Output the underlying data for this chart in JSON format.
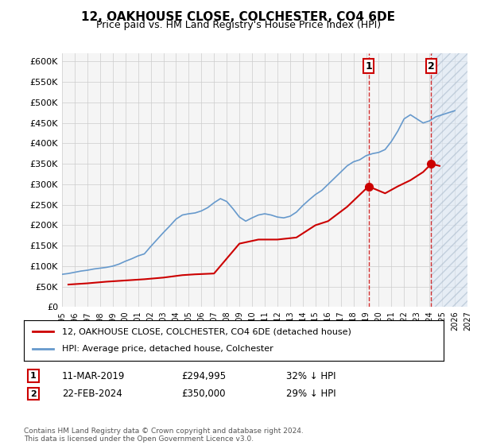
{
  "title": "12, OAKHOUSE CLOSE, COLCHESTER, CO4 6DE",
  "subtitle": "Price paid vs. HM Land Registry's House Price Index (HPI)",
  "hpi_color": "#6699cc",
  "price_color": "#cc0000",
  "marker_color": "#cc0000",
  "vline_color": "#cc0000",
  "annotation_box_color": "#cc0000",
  "background_color": "#ffffff",
  "grid_color": "#cccccc",
  "plot_bg_color": "#f5f5f5",
  "right_hatch_color": "#d0d8e8",
  "ylim": [
    0,
    620000
  ],
  "ytick_step": 50000,
  "legend_label_red": "12, OAKHOUSE CLOSE, COLCHESTER, CO4 6DE (detached house)",
  "legend_label_blue": "HPI: Average price, detached house, Colchester",
  "annotation1_label": "1",
  "annotation1_date": "11-MAR-2019",
  "annotation1_price": "£294,995",
  "annotation1_pct": "32% ↓ HPI",
  "annotation2_label": "2",
  "annotation2_date": "22-FEB-2024",
  "annotation2_price": "£350,000",
  "annotation2_pct": "29% ↓ HPI",
  "footnote": "Contains HM Land Registry data © Crown copyright and database right 2024.\nThis data is licensed under the Open Government Licence v3.0.",
  "purchase1_x": 2019.19,
  "purchase1_y": 294995,
  "purchase2_x": 2024.14,
  "purchase2_y": 350000,
  "xmin": 1995,
  "xmax": 2027,
  "hpi_x": [
    1995,
    1995.5,
    1996,
    1996.5,
    1997,
    1997.5,
    1998,
    1998.5,
    1999,
    1999.5,
    2000,
    2000.5,
    2001,
    2001.5,
    2002,
    2002.5,
    2003,
    2003.5,
    2004,
    2004.5,
    2005,
    2005.5,
    2006,
    2006.5,
    2007,
    2007.5,
    2008,
    2008.5,
    2009,
    2009.5,
    2010,
    2010.5,
    2011,
    2011.5,
    2012,
    2012.5,
    2013,
    2013.5,
    2014,
    2014.5,
    2015,
    2015.5,
    2016,
    2016.5,
    2017,
    2017.5,
    2018,
    2018.5,
    2019,
    2019.5,
    2020,
    2020.5,
    2021,
    2021.5,
    2022,
    2022.5,
    2023,
    2023.5,
    2024,
    2024.5,
    2025,
    2025.5,
    2026
  ],
  "hpi_y": [
    80000,
    82000,
    85000,
    88000,
    90000,
    93000,
    95000,
    97000,
    100000,
    105000,
    112000,
    118000,
    125000,
    130000,
    148000,
    165000,
    182000,
    198000,
    215000,
    225000,
    228000,
    230000,
    235000,
    243000,
    255000,
    265000,
    258000,
    240000,
    220000,
    210000,
    218000,
    225000,
    228000,
    225000,
    220000,
    218000,
    222000,
    232000,
    248000,
    262000,
    275000,
    285000,
    300000,
    315000,
    330000,
    345000,
    355000,
    360000,
    370000,
    375000,
    378000,
    385000,
    405000,
    430000,
    460000,
    470000,
    460000,
    450000,
    455000,
    465000,
    470000,
    475000,
    480000
  ],
  "price_x": [
    1995.5,
    1997.0,
    1998.5,
    2000.0,
    2001.5,
    2003.0,
    2004.5,
    2005.5,
    2007.0,
    2009.0,
    2010.5,
    2012.0,
    2013.5,
    2015.0,
    2016.0,
    2017.5,
    2019.19,
    2020.5,
    2021.5,
    2022.5,
    2023.5,
    2024.14,
    2024.8
  ],
  "price_y": [
    55000,
    58000,
    62000,
    65000,
    68000,
    72000,
    78000,
    80000,
    82000,
    155000,
    165000,
    165000,
    170000,
    200000,
    210000,
    245000,
    294995,
    278000,
    295000,
    310000,
    330000,
    350000,
    345000
  ]
}
